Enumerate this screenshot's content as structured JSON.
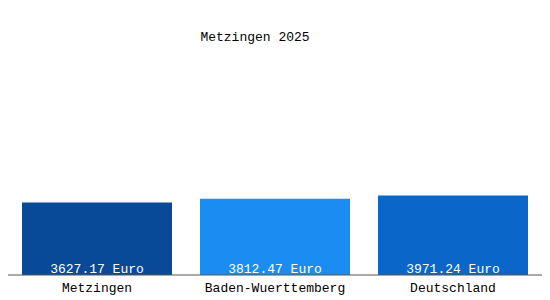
{
  "chart_data": {
    "type": "bar",
    "title": "Metzingen 2025",
    "categories": [
      "Metzingen",
      "Baden-Wuerttemberg",
      "Deutschland"
    ],
    "values": [
      3627.17,
      3812.47,
      3971.24
    ],
    "value_labels": [
      "3627.17 Euro",
      "3812.47 Euro",
      "3971.24 Euro"
    ],
    "colors": [
      "#084a98",
      "#1a8cf2",
      "#0a66c8"
    ],
    "ylim": [
      0,
      13500
    ],
    "data_labels": true,
    "tick_labels": "x",
    "grid": false
  }
}
